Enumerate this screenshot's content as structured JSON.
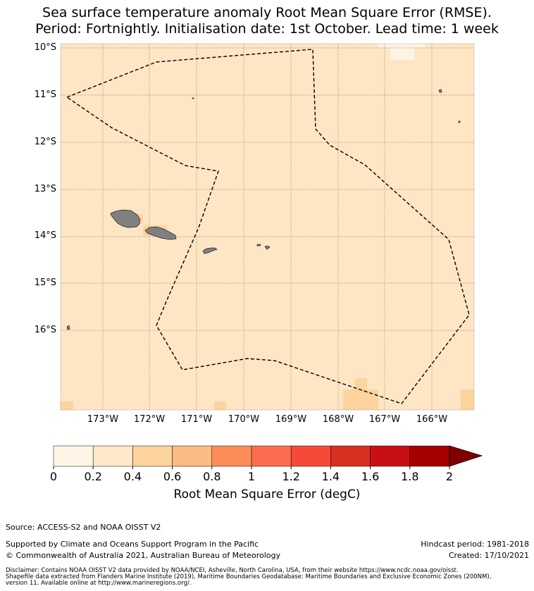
{
  "header": {
    "title_line1": "Sea surface temperature anomaly Root Mean Square Error (RMSE).",
    "title_line2": "Period: Fortnightly. Initialisation date: 1st October. Lead time: 1 week"
  },
  "map": {
    "lat_labels": [
      "10°S",
      "11°S",
      "12°S",
      "13°S",
      "14°S",
      "15°S",
      "16°S"
    ],
    "lon_labels": [
      "173°W",
      "172°W",
      "171°W",
      "170°W",
      "169°W",
      "168°W",
      "167°W",
      "166°W"
    ],
    "background_rmse_class": "0.2–0.4",
    "colors": {
      "land": "#808080",
      "grid": "#a08b6f",
      "eez_line": "#000000"
    }
  },
  "colorbar": {
    "ticks": [
      "0",
      "0.2",
      "0.4",
      "0.6",
      "0.8",
      "1",
      "1.2",
      "1.4",
      "1.6",
      "1.8",
      "2"
    ],
    "colors": [
      "#fff5e6",
      "#fee8c8",
      "#fdd49e",
      "#fdbb84",
      "#fc8d59",
      "#fc6b4e",
      "#f64a39",
      "#d7301f",
      "#c90f16",
      "#a50000"
    ],
    "extend_color": "#7f0000",
    "label": "Root Mean Square Error (degC)"
  },
  "footer": {
    "source": "Source: ACCESS-S2 and NOAA OISST V2",
    "support": "Supported by Climate and Oceans Support Program in the Pacific",
    "copyright": "© Commonwealth of Australia 2021, Australian Bureau of Meteorology",
    "hindcast": "Hindcast period: 1981-2018",
    "created": "Created: 17/10/2021",
    "disclaimer1": "Disclaimer: Contains NOAA OISST V2 data provided by NOAA/NCEI, Asheville, North Carolina, USA, from their website https://www.ncdc.noaa.gov/oisst.",
    "disclaimer2": "Shapefile data extracted from Flanders Marine Institute (2019), Maritime Boundaries Geodatabase: Maritime Boundaries and Exclusive Economic Zones (200NM),",
    "disclaimer3": "version 11. Available online at http://www.marineregions.org/."
  }
}
